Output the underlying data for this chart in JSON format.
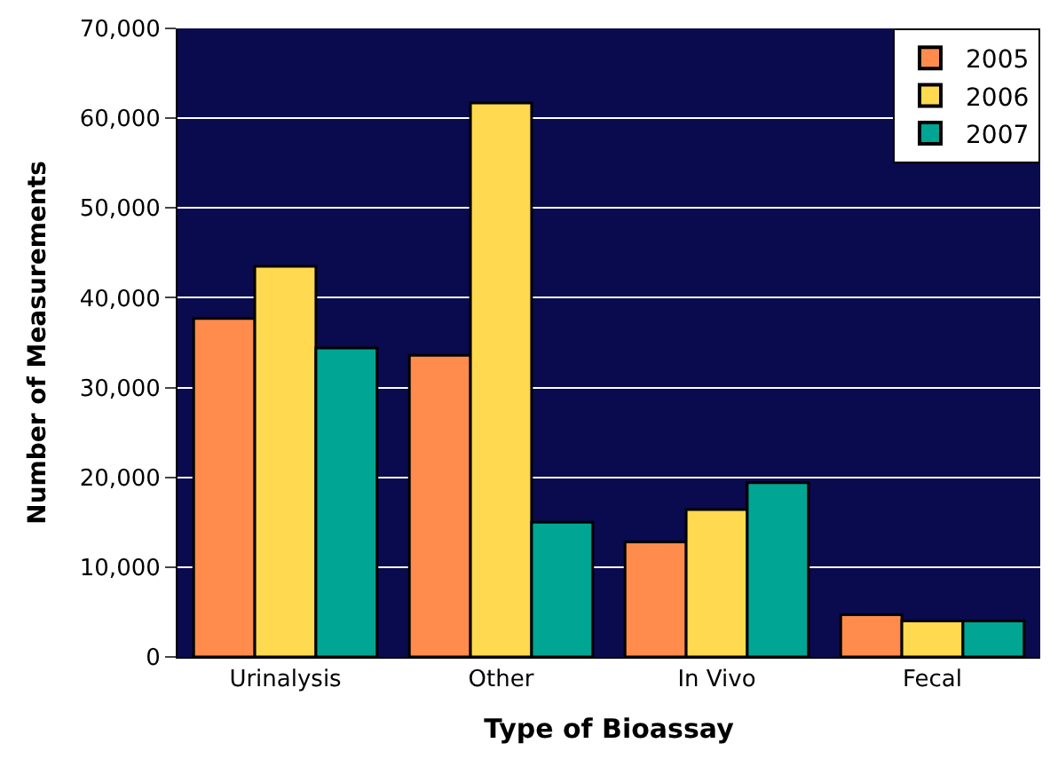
{
  "chart_data": {
    "type": "bar",
    "xlabel": "Type of Bioassay",
    "ylabel": "Number of Measurements",
    "categories": [
      "Urinalysis",
      "Other",
      "In Vivo",
      "Fecal"
    ],
    "series": [
      {
        "name": "2005",
        "color": "#ff8c4c",
        "values": [
          37700,
          33600,
          12800,
          4700
        ]
      },
      {
        "name": "2006",
        "color": "#ffd94f",
        "values": [
          43500,
          61700,
          16400,
          4000
        ]
      },
      {
        "name": "2007",
        "color": "#00a693",
        "values": [
          34400,
          15000,
          19400,
          4000
        ]
      }
    ],
    "ylim": [
      0,
      70000
    ],
    "yticks": [
      {
        "value": 0,
        "label": "0"
      },
      {
        "value": 10000,
        "label": "10,000"
      },
      {
        "value": 20000,
        "label": "20,000"
      },
      {
        "value": 30000,
        "label": "30,000"
      },
      {
        "value": 40000,
        "label": "40,000"
      },
      {
        "value": 50000,
        "label": "50,000"
      },
      {
        "value": 60000,
        "label": "60,000"
      },
      {
        "value": 70000,
        "label": "70,000"
      }
    ],
    "grid": "y",
    "legend": "top right"
  }
}
